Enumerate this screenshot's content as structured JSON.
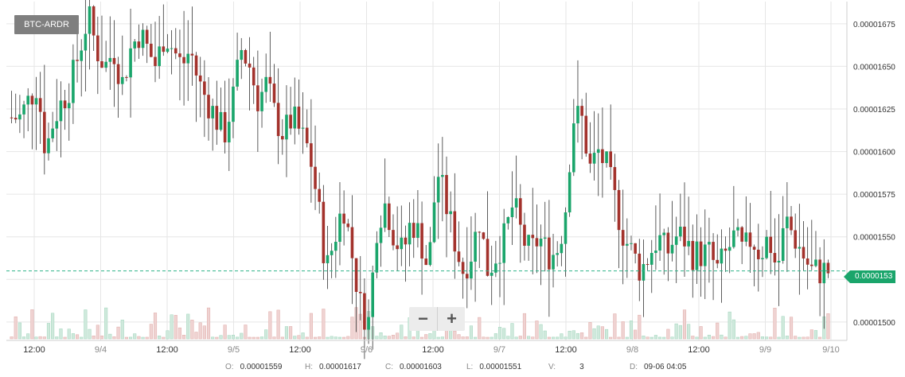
{
  "pair": "BTC-ARDR",
  "zoom": {
    "out_label": "−",
    "in_label": "+"
  },
  "ohlc_readout": {
    "o_label": "O:",
    "o_value": "0.00001559",
    "h_label": "H:",
    "h_value": "0.00001617",
    "c_label": "C:",
    "c_value": "0.00001603",
    "l_label": "L:",
    "l_value": "0.00001551",
    "v_label": "V:",
    "v_value": "3",
    "d_label": "D:",
    "d_value": "09-06 04:05"
  },
  "last_price_label": "0.0000153",
  "colors": {
    "up": "#1aa56b",
    "down": "#a3322c",
    "grid": "#e6e6e6",
    "last_line": "#2db388"
  },
  "chart_data": {
    "type": "candlestick",
    "title": "",
    "y_axis": {
      "ylim": [
        1.492e-05,
        1.688e-05
      ],
      "ticks": [
        1.5e-05,
        1.525e-05,
        1.55e-05,
        1.575e-05,
        1.6e-05,
        1.625e-05,
        1.65e-05,
        1.675e-05
      ],
      "tick_labels": [
        "0.00001500",
        "0.00001525",
        "0.00001550",
        "0.00001575",
        "0.00001600",
        "0.00001625",
        "0.00001650",
        "0.00001675"
      ]
    },
    "x_axis": {
      "tick_labels": [
        "12:00",
        "9/4",
        "12:00",
        "9/5",
        "12:00",
        "9/6",
        "12:00",
        "9/7",
        "12:00",
        "9/8",
        "12:00",
        "9/9",
        "9/10"
      ]
    },
    "last_price": 1.53e-05,
    "series_anchor_closes": [
      1.62e-05,
      1.62e-05,
      1.63e-05,
      1.64e-05,
      1.6e-05,
      1.62e-05,
      1.63e-05,
      1.64e-05,
      1.66e-05,
      1.68e-05,
      1.66e-05,
      1.65e-05,
      1.66e-05,
      1.64e-05,
      1.66e-05,
      1.67e-05,
      1.66e-05,
      1.65e-05,
      1.67e-05,
      1.66e-05,
      1.65e-05,
      1.66e-05,
      1.64e-05,
      1.63e-05,
      1.62e-05,
      1.61e-05,
      1.63e-05,
      1.66e-05,
      1.65e-05,
      1.63e-05,
      1.64e-05,
      1.62e-05,
      1.61e-05,
      1.62e-05,
      1.61e-05,
      1.6e-05,
      1.57e-05,
      1.53e-05,
      1.55e-05,
      1.57e-05,
      1.54e-05,
      1.51e-05,
      1.5e-05,
      1.56e-05,
      1.57e-05,
      1.55e-05,
      1.54e-05,
      1.56e-05,
      1.55e-05,
      1.53e-05,
      1.59e-05,
      1.57e-05,
      1.55e-05,
      1.53e-05,
      1.54e-05,
      1.56e-05,
      1.53e-05,
      1.54e-05,
      1.55e-05,
      1.57e-05,
      1.55e-05,
      1.54e-05,
      1.55e-05,
      1.54e-05,
      1.54e-05,
      1.56e-05,
      1.62e-05,
      1.62e-05,
      1.59e-05,
      1.6e-05,
      1.59e-05,
      1.57e-05,
      1.55e-05,
      1.54e-05,
      1.53e-05,
      1.54e-05,
      1.55e-05,
      1.54e-05,
      1.55e-05,
      1.55e-05,
      1.54e-05,
      1.54e-05,
      1.54e-05,
      1.53e-05,
      1.54e-05,
      1.55e-05,
      1.54e-05,
      1.55e-05,
      1.54e-05,
      1.55e-05,
      1.53e-05,
      1.56e-05,
      1.55e-05,
      1.54e-05,
      1.53e-05,
      1.53e-05,
      1.53e-05
    ]
  }
}
